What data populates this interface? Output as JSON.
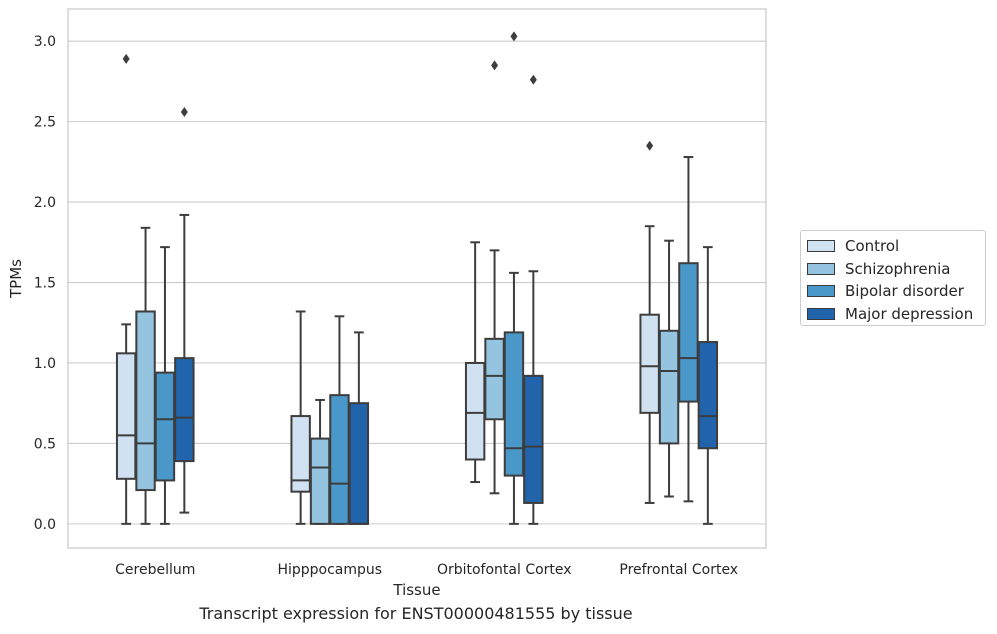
{
  "caption": "Transcript expression for ENST00000481555 by tissue",
  "chart_data": {
    "type": "box",
    "xlabel": "Tissue",
    "ylabel": "TPMs",
    "ylim": [
      -0.15,
      3.2
    ],
    "yticks": [
      "0.0",
      "0.5",
      "1.0",
      "1.5",
      "2.0",
      "2.5",
      "3.0"
    ],
    "grid": "horizontal",
    "legend_placement": "right",
    "categories": [
      "Cerebellum",
      "Hipppocampus",
      "Orbitofontal Cortex",
      "Prefrontal Cortex"
    ],
    "series": [
      {
        "name": "Control",
        "color": "#d0e1f2",
        "boxes": [
          {
            "whislo": 0.0,
            "q1": 0.28,
            "med": 0.55,
            "q3": 1.06,
            "whishi": 1.24,
            "fliers": [
              2.89
            ]
          },
          {
            "whislo": 0.0,
            "q1": 0.2,
            "med": 0.27,
            "q3": 0.67,
            "whishi": 1.32,
            "fliers": []
          },
          {
            "whislo": 0.26,
            "q1": 0.4,
            "med": 0.69,
            "q3": 1.0,
            "whishi": 1.75,
            "fliers": []
          },
          {
            "whislo": 0.13,
            "q1": 0.69,
            "med": 0.98,
            "q3": 1.3,
            "whishi": 1.85,
            "fliers": [
              2.35
            ]
          }
        ]
      },
      {
        "name": "Schizophrenia",
        "color": "#94c4df",
        "boxes": [
          {
            "whislo": 0.0,
            "q1": 0.21,
            "med": 0.5,
            "q3": 1.32,
            "whishi": 1.84,
            "fliers": []
          },
          {
            "whislo": 0.0,
            "q1": 0.0,
            "med": 0.35,
            "q3": 0.53,
            "whishi": 0.77,
            "fliers": []
          },
          {
            "whislo": 0.19,
            "q1": 0.65,
            "med": 0.92,
            "q3": 1.15,
            "whishi": 1.7,
            "fliers": [
              2.85
            ]
          },
          {
            "whislo": 0.17,
            "q1": 0.5,
            "med": 0.95,
            "q3": 1.2,
            "whishi": 1.76,
            "fliers": []
          }
        ]
      },
      {
        "name": "Bipolar disorder",
        "color": "#4a98c9",
        "boxes": [
          {
            "whislo": 0.0,
            "q1": 0.27,
            "med": 0.65,
            "q3": 0.94,
            "whishi": 1.72,
            "fliers": []
          },
          {
            "whislo": 0.0,
            "q1": 0.0,
            "med": 0.25,
            "q3": 0.8,
            "whishi": 1.29,
            "fliers": []
          },
          {
            "whislo": 0.0,
            "q1": 0.3,
            "med": 0.47,
            "q3": 1.19,
            "whishi": 1.56,
            "fliers": [
              3.03
            ]
          },
          {
            "whislo": 0.14,
            "q1": 0.76,
            "med": 1.03,
            "q3": 1.62,
            "whishi": 2.28,
            "fliers": []
          }
        ]
      },
      {
        "name": "Major depression",
        "color": "#2164ab",
        "boxes": [
          {
            "whislo": 0.07,
            "q1": 0.39,
            "med": 0.66,
            "q3": 1.03,
            "whishi": 1.92,
            "fliers": [
              2.56
            ]
          },
          {
            "whislo": 0.0,
            "q1": 0.0,
            "med": 0.0,
            "q3": 0.75,
            "whishi": 1.19,
            "fliers": []
          },
          {
            "whislo": 0.0,
            "q1": 0.13,
            "med": 0.48,
            "q3": 0.92,
            "whishi": 1.57,
            "fliers": [
              2.76
            ]
          },
          {
            "whislo": 0.0,
            "q1": 0.47,
            "med": 0.67,
            "q3": 1.13,
            "whishi": 1.72,
            "fliers": []
          }
        ]
      }
    ]
  }
}
